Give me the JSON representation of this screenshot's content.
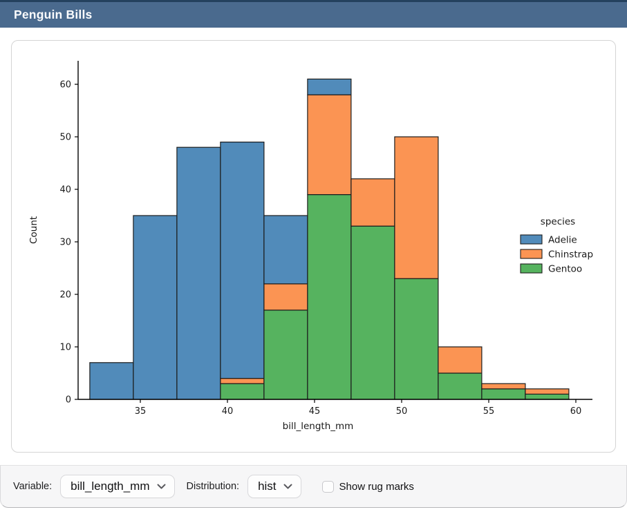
{
  "window": {
    "title": "Penguin Bills"
  },
  "controls": {
    "variable_label": "Variable:",
    "variable_value": "bill_length_mm",
    "distribution_label": "Distribution:",
    "distribution_value": "hist",
    "rug_label": "Show rug marks",
    "rug_checked": false
  },
  "colors": {
    "titlebar": "#4a6a8e",
    "titlebar_edge": "#24415e",
    "adelie_blue": "#518bba",
    "chinstrap_orange": "#fb9453",
    "gentoo_green": "#56b35f",
    "bar_edge": "#1c1c1c"
  },
  "chart_data": {
    "type": "bar",
    "subtype": "stacked-histogram",
    "xlabel": "bill_length_mm",
    "ylabel": "Count",
    "bin_edges": [
      32.1,
      34.6,
      37.1,
      39.6,
      42.1,
      44.6,
      47.1,
      49.6,
      52.1,
      54.6,
      57.1,
      59.6
    ],
    "x_ticks": [
      35,
      40,
      45,
      50,
      55,
      60
    ],
    "y_ticks": [
      0,
      10,
      20,
      30,
      40,
      50,
      60
    ],
    "xlim": [
      31.4,
      60.9
    ],
    "ylim": [
      0,
      64.5
    ],
    "grid": false,
    "stack_order_bottom_to_top": [
      "Gentoo",
      "Chinstrap",
      "Adelie"
    ],
    "series": [
      {
        "name": "Gentoo",
        "color": "#56b35f",
        "values": [
          0,
          0,
          0,
          3,
          17,
          39,
          33,
          23,
          5,
          2,
          1
        ]
      },
      {
        "name": "Chinstrap",
        "color": "#fb9453",
        "values": [
          0,
          0,
          0,
          1,
          5,
          19,
          9,
          27,
          5,
          1,
          1
        ]
      },
      {
        "name": "Adelie",
        "color": "#518bba",
        "values": [
          7,
          35,
          48,
          45,
          13,
          3,
          0,
          0,
          0,
          0,
          0
        ]
      }
    ],
    "bin_totals": [
      7,
      35,
      48,
      49,
      35,
      61,
      42,
      50,
      10,
      3,
      2
    ],
    "legend": {
      "title": "species",
      "position": "center-right",
      "entries": [
        {
          "label": "Adelie",
          "color": "#518bba"
        },
        {
          "label": "Chinstrap",
          "color": "#fb9453"
        },
        {
          "label": "Gentoo",
          "color": "#56b35f"
        }
      ]
    }
  }
}
